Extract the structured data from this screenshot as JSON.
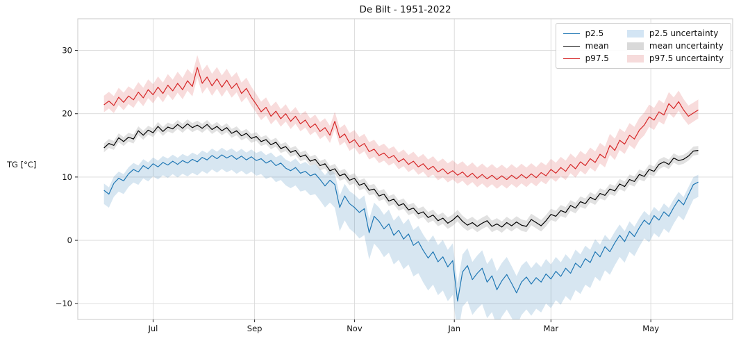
{
  "title": "De Bilt - 1951-2022",
  "ylabel": "TG [°C]",
  "legend": {
    "entries": [
      {
        "label": "p2.5",
        "type": "line",
        "color": "#1f77b4"
      },
      {
        "label": "mean",
        "type": "line",
        "color": "#000000"
      },
      {
        "label": "p97.5",
        "type": "line",
        "color": "#d62728"
      },
      {
        "label": "p2.5 uncertainty",
        "type": "patch",
        "color": "#d3e5f4"
      },
      {
        "label": "mean uncertainty",
        "type": "patch",
        "color": "#d9d9d9"
      },
      {
        "label": "p97.5 uncertainty",
        "type": "patch",
        "color": "#f6dbdb"
      }
    ]
  },
  "chart_data": {
    "type": "line",
    "title": "De Bilt - 1951-2022",
    "ylabel": "TG [°C]",
    "xlabel": "",
    "grid": true,
    "legend_position": "upper right",
    "x_description": "day index, day 0 = Jun 1, one value every 3 days over one year",
    "x_start_day": 0,
    "x_step_days": 3,
    "xlim": [
      -16,
      384
    ],
    "ylim": [
      -12.5,
      35
    ],
    "xtick_days": [
      30,
      92,
      153,
      214,
      273,
      334
    ],
    "xtick_labels": [
      "Jul",
      "Sep",
      "Nov",
      "Jan",
      "Mar",
      "May"
    ],
    "ytick_values": [
      -10,
      0,
      10,
      20,
      30
    ],
    "ytick_labels": [
      "−10",
      "0",
      "10",
      "20",
      "30"
    ],
    "band_width_x": [
      0,
      30,
      60,
      90,
      120,
      150,
      180,
      210,
      240,
      270,
      300,
      330,
      360
    ],
    "series": [
      {
        "name": "p2.5",
        "color": "#1f77b4",
        "band_label": "p2.5 uncertainty",
        "band_opacity": 0.18,
        "band_width": [
          1.2,
          1.1,
          1.2,
          1.3,
          1.6,
          2.2,
          2.6,
          3.0,
          3.2,
          2.6,
          2.2,
          1.6,
          1.3
        ],
        "band_high_scale": 0.9,
        "band_low_scale": 1.8,
        "values": [
          7.9,
          7.3,
          9.0,
          9.8,
          9.4,
          10.5,
          11.2,
          10.8,
          11.8,
          11.3,
          12.1,
          11.6,
          12.3,
          11.9,
          12.5,
          12.0,
          12.6,
          12.2,
          12.8,
          12.4,
          13.1,
          12.7,
          13.4,
          12.9,
          13.5,
          13.0,
          13.4,
          12.8,
          13.3,
          12.7,
          13.2,
          12.6,
          12.9,
          12.2,
          12.6,
          11.8,
          12.2,
          11.4,
          11.0,
          11.5,
          10.6,
          10.9,
          10.2,
          10.5,
          9.6,
          8.6,
          9.5,
          8.8,
          5.2,
          7.0,
          5.8,
          5.2,
          4.4,
          5.0,
          1.2,
          3.8,
          3.0,
          1.8,
          2.6,
          0.8,
          1.6,
          0.2,
          1.0,
          -0.8,
          -0.2,
          -1.6,
          -2.8,
          -1.8,
          -3.4,
          -2.6,
          -4.2,
          -3.2,
          -9.6,
          -5.0,
          -4.0,
          -6.2,
          -5.2,
          -4.4,
          -6.6,
          -5.6,
          -7.8,
          -6.4,
          -5.4,
          -6.8,
          -8.3,
          -6.6,
          -5.8,
          -6.9,
          -5.9,
          -6.6,
          -5.3,
          -6.1,
          -4.9,
          -5.7,
          -4.4,
          -5.2,
          -3.6,
          -4.3,
          -2.9,
          -3.5,
          -1.8,
          -2.6,
          -1.0,
          -1.8,
          -0.4,
          0.8,
          -0.2,
          1.4,
          0.6,
          2.0,
          3.2,
          2.5,
          3.9,
          3.2,
          4.5,
          3.8,
          5.2,
          6.4,
          5.6,
          7.2,
          8.8,
          9.2
        ]
      },
      {
        "name": "mean",
        "color": "#000000",
        "band_label": "mean uncertainty",
        "band_opacity": 0.35,
        "band_color": "#aaaaaa",
        "band_width": [
          0.7,
          0.7,
          0.7,
          0.7,
          0.7,
          0.8,
          0.8,
          0.9,
          0.9,
          0.9,
          0.8,
          0.8,
          0.7
        ],
        "band_high_scale": 1.0,
        "band_low_scale": 1.0,
        "values": [
          14.6,
          15.3,
          15.0,
          16.2,
          15.6,
          16.3,
          16.0,
          17.3,
          16.6,
          17.4,
          17.0,
          18.0,
          17.2,
          17.9,
          17.6,
          18.3,
          17.7,
          18.4,
          17.8,
          18.2,
          17.7,
          18.3,
          17.5,
          18.0,
          17.3,
          17.8,
          16.9,
          17.3,
          16.5,
          16.9,
          16.1,
          16.4,
          15.6,
          15.9,
          15.1,
          15.5,
          14.5,
          14.8,
          13.9,
          14.2,
          13.2,
          13.5,
          12.5,
          12.8,
          11.8,
          12.1,
          11.0,
          11.3,
          10.2,
          10.5,
          9.5,
          9.8,
          8.7,
          9.0,
          7.9,
          8.1,
          7.0,
          7.3,
          6.2,
          6.5,
          5.5,
          5.8,
          4.8,
          5.1,
          4.2,
          4.5,
          3.6,
          4.0,
          3.1,
          3.5,
          2.7,
          3.2,
          3.9,
          3.0,
          2.4,
          2.8,
          2.2,
          2.7,
          3.1,
          2.2,
          2.6,
          2.1,
          2.8,
          2.3,
          2.9,
          2.4,
          2.2,
          3.3,
          2.8,
          2.3,
          3.1,
          4.1,
          3.8,
          4.7,
          4.4,
          5.5,
          5.1,
          6.1,
          5.8,
          6.8,
          6.4,
          7.4,
          7.1,
          8.1,
          7.8,
          8.9,
          8.5,
          9.6,
          9.3,
          10.4,
          10.1,
          11.2,
          10.9,
          12.0,
          12.4,
          12.0,
          13.0,
          12.6,
          12.8,
          13.3,
          14.1,
          14.2
        ]
      },
      {
        "name": "p97.5",
        "color": "#d62728",
        "band_label": "p97.5 uncertainty",
        "band_opacity": 0.16,
        "band_width": [
          1.3,
          1.5,
          1.8,
          1.5,
          1.3,
          1.4,
          1.3,
          1.5,
          1.6,
          1.5,
          1.6,
          1.8,
          1.5
        ],
        "band_high_scale": 1.1,
        "band_low_scale": 0.9,
        "values": [
          21.4,
          22.0,
          21.3,
          22.6,
          21.8,
          22.8,
          22.2,
          23.4,
          22.5,
          23.8,
          23.0,
          24.2,
          23.2,
          24.5,
          23.6,
          24.8,
          23.8,
          25.2,
          24.3,
          27.3,
          24.8,
          25.8,
          24.4,
          25.5,
          24.2,
          25.3,
          24.0,
          24.8,
          23.2,
          24.0,
          22.6,
          21.5,
          20.3,
          21.0,
          19.6,
          20.4,
          19.2,
          20.0,
          18.8,
          19.6,
          18.4,
          19.0,
          17.8,
          18.4,
          17.2,
          17.8,
          16.6,
          18.8,
          16.2,
          16.8,
          15.4,
          15.9,
          14.8,
          15.3,
          14.0,
          14.4,
          13.4,
          13.8,
          13.0,
          13.4,
          12.4,
          12.9,
          12.0,
          12.5,
          11.6,
          12.1,
          11.2,
          11.7,
          10.8,
          11.3,
          10.5,
          11.0,
          10.3,
          10.8,
          10.0,
          10.6,
          9.8,
          10.4,
          9.7,
          10.3,
          9.6,
          10.2,
          9.6,
          10.3,
          9.7,
          10.4,
          9.8,
          10.5,
          9.9,
          10.7,
          10.2,
          11.2,
          10.6,
          11.5,
          10.9,
          12.0,
          11.3,
          12.4,
          11.8,
          12.9,
          12.3,
          13.6,
          13.0,
          15.0,
          14.2,
          15.8,
          15.2,
          16.6,
          16.0,
          17.4,
          18.2,
          19.5,
          19.0,
          20.3,
          19.8,
          21.6,
          20.8,
          21.9,
          20.6,
          19.6,
          20.1,
          20.6
        ]
      }
    ]
  }
}
